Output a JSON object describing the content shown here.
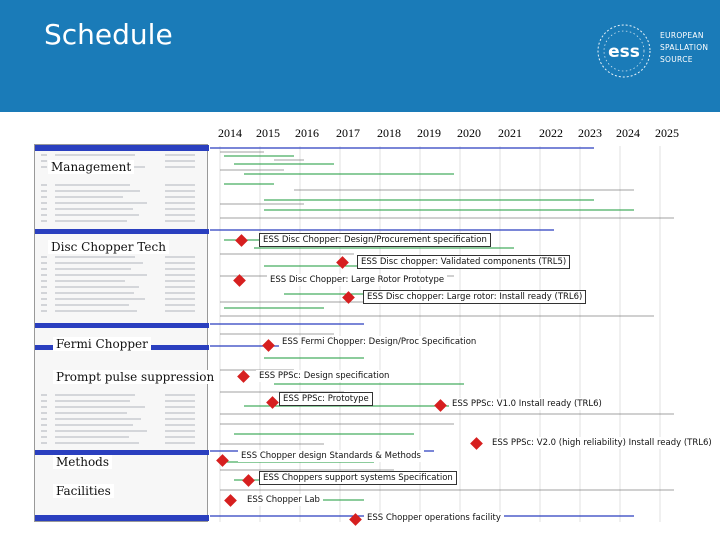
{
  "title": "Schedule",
  "logo": {
    "mark": "ess",
    "line1": "EUROPEAN",
    "line2": "SPALLATION",
    "line3": "SOURCE"
  },
  "years": [
    "2014",
    "2015",
    "2016",
    "2017",
    "2018",
    "2019",
    "2020",
    "2021",
    "2022",
    "2023",
    "2024",
    "2025"
  ],
  "sections": [
    "Management",
    "Disc Chopper Tech",
    "Fermi Chopper",
    "Prompt pulse suppression",
    "Methods",
    "Facilities"
  ],
  "milestones": [
    "ESS Disc Chopper: Design/Procurement specification",
    "ESS Disc chopper: Validated components (TRL5)",
    "ESS Disc Chopper: Large Rotor Prototype",
    "ESS Disc chopper: Large rotor: Install ready (TRL6)",
    "ESS Fermi Chopper: Design/Proc Specification",
    "ESS PPSc: Design specification",
    "ESS PPSc: Prototype",
    "ESS PPSc: V1.0 Install ready (TRL6)",
    "ESS PPSc: V2.0 (high reliability) Install ready (TRL6)",
    "ESS Chopper design Standards & Methods",
    "ESS Choppers support systems Specification",
    "ESS Chopper Lab",
    "ESS Chopper operations facility"
  ],
  "colors": {
    "banner": "#1a7bb8",
    "milestone": "#d61f1f",
    "summary": "#2a3fbf",
    "task": "#1a9a3a"
  }
}
